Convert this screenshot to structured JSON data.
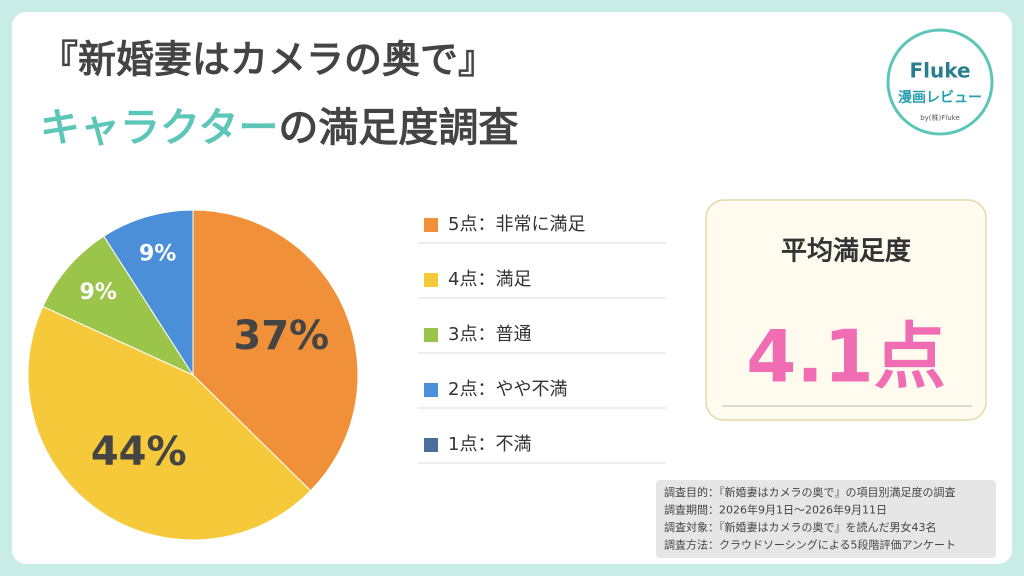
{
  "chart_data": {
    "type": "pie",
    "title": "『新婚妻はカメラの奥で』",
    "subtitle_highlight": "キャラクター",
    "subtitle": "の満足度調査",
    "categories": [
      "5点：非常に満足",
      "4点：満足",
      "3点：普通",
      "2点：やや不満",
      "1点：不満"
    ],
    "values": [
      37,
      44,
      9,
      9,
      0
    ],
    "value_labels": [
      "37%",
      "44%",
      "9%",
      "9%",
      null
    ],
    "colors": [
      "#f0913a",
      "#f5c93a",
      "#9bc54a",
      "#4a8fd8",
      "#4a6f9a"
    ],
    "average_title": "平均満足度",
    "average_value": 4.1,
    "average_label": "4.1点",
    "logo": {
      "name": "Fluke",
      "tagline": "漫画レビュー",
      "by": "by(株)Fluke"
    },
    "notes": [
      "調査目的：『新婚妻はカメラの奥で』の項目別満足度の調査",
      "調査期間：2026年9月1日～2026年9月11日",
      "調査対象：『新婚妻はカメラの奥で』を読んだ男女43名",
      "調査方法：クラウドソーシングによる5段階評価アンケート"
    ]
  }
}
